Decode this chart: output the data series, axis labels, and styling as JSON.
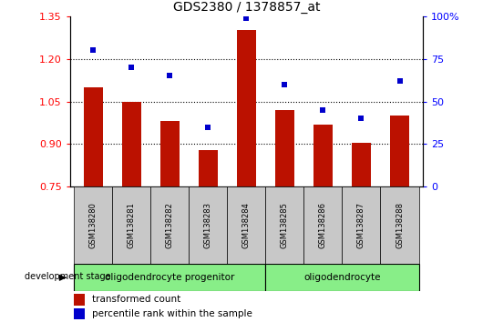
{
  "title": "GDS2380 / 1378857_at",
  "samples": [
    "GSM138280",
    "GSM138281",
    "GSM138282",
    "GSM138283",
    "GSM138284",
    "GSM138285",
    "GSM138286",
    "GSM138287",
    "GSM138288"
  ],
  "transformed_count": [
    1.1,
    1.05,
    0.98,
    0.88,
    1.3,
    1.02,
    0.97,
    0.905,
    1.0
  ],
  "percentile_rank": [
    80,
    70,
    65,
    35,
    99,
    60,
    45,
    40,
    62
  ],
  "ylim_left": [
    0.75,
    1.35
  ],
  "ylim_right": [
    0,
    100
  ],
  "yticks_left": [
    0.75,
    0.9,
    1.05,
    1.2,
    1.35
  ],
  "yticks_right": [
    0,
    25,
    50,
    75,
    100
  ],
  "ytick_labels_right": [
    "0",
    "25",
    "50",
    "75",
    "100%"
  ],
  "bar_color": "#BB1100",
  "dot_color": "#0000CC",
  "grid_ticks": [
    0.9,
    1.05,
    1.2
  ],
  "groups": [
    {
      "label": "oligodendrocyte progenitor",
      "start": 0,
      "end": 4,
      "color": "#88EE88"
    },
    {
      "label": "oligodendrocyte",
      "start": 5,
      "end": 8,
      "color": "#88EE88"
    }
  ],
  "development_stage_label": "development stage",
  "legend_items": [
    {
      "label": "transformed count",
      "color": "#BB1100"
    },
    {
      "label": "percentile rank within the sample",
      "color": "#0000CC"
    }
  ],
  "tickarea_color": "#C8C8C8",
  "bar_width": 0.5
}
